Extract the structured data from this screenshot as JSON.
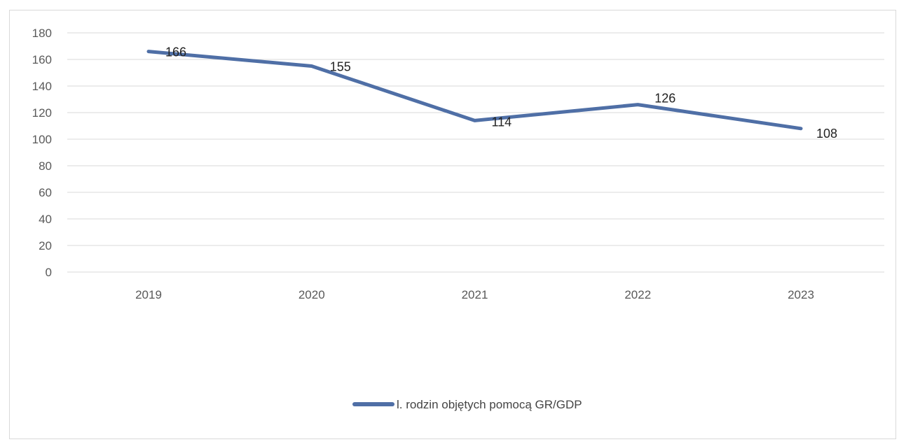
{
  "chart_data": {
    "type": "line",
    "categories": [
      "2019",
      "2020",
      "2021",
      "2022",
      "2023"
    ],
    "series": [
      {
        "name": "l. rodzin objętych pomocą GR/GDP",
        "values": [
          166,
          155,
          114,
          126,
          108
        ],
        "color": "#4f6fa6"
      }
    ],
    "data_labels": [
      "166",
      "155",
      "114",
      "126",
      "108"
    ],
    "ylim": [
      0,
      180
    ],
    "yticks": [
      0,
      20,
      40,
      60,
      80,
      100,
      120,
      140,
      160,
      180
    ],
    "grid": true,
    "legend": "bottom",
    "title": "",
    "xlabel": "",
    "ylabel": ""
  }
}
